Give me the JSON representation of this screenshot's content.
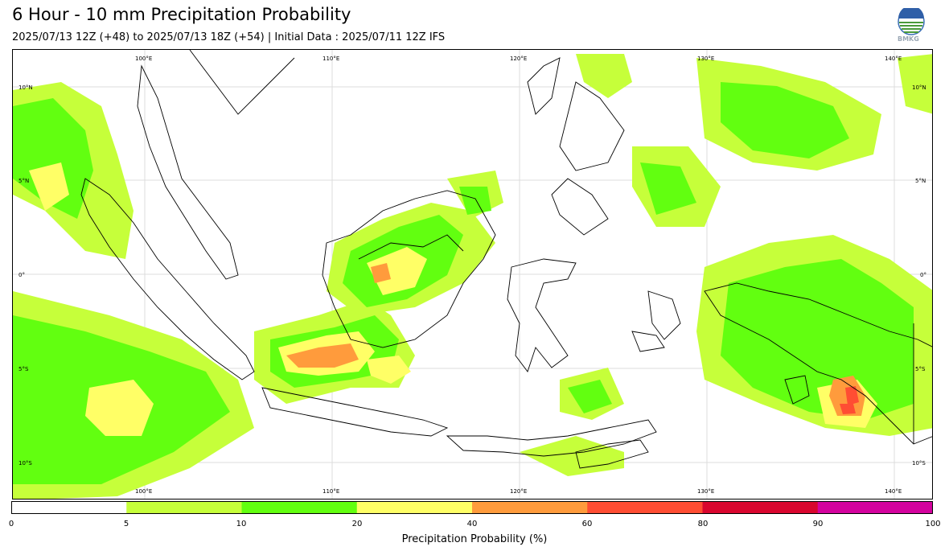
{
  "header": {
    "title": "6 Hour - 10 mm Precipitation Probability",
    "subtitle": "2025/07/13 12Z (+48) to 2025/07/13 18Z (+54) | Initial Data : 2025/07/11 12Z IFS",
    "logo_text": "BMKG"
  },
  "map": {
    "lon_labels_top": [
      "100°E",
      "110°E",
      "120°E",
      "130°E",
      "140°E"
    ],
    "lon_labels_bottom": [
      "100°E",
      "110°E",
      "120°E",
      "130°E",
      "140°E"
    ],
    "lat_labels_left": [
      "10°N",
      "5°N",
      "0°",
      "5°S",
      "10°S"
    ],
    "lat_labels_right": [
      "10°N",
      "5°N",
      "0°",
      "5°S",
      "10°S"
    ],
    "gridlines": true
  },
  "colorbar": {
    "label": "Precipitation Probability (%)",
    "ticks": [
      "0",
      "5",
      "10",
      "20",
      "40",
      "60",
      "80",
      "90",
      "100"
    ],
    "colors": [
      "#ffffff",
      "#c6ff3a",
      "#62ff10",
      "#ffff66",
      "#ff9b3c",
      "#ff4d33",
      "#d9062e",
      "#d4039e"
    ]
  }
}
